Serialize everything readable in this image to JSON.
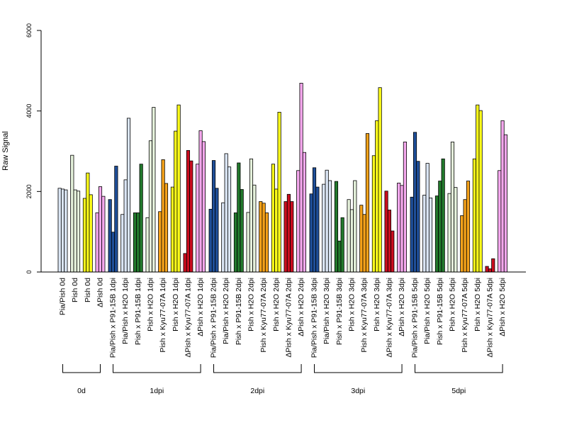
{
  "chart_data": {
    "type": "bar",
    "ylabel": "Raw Signal",
    "ylim": [
      0,
      6000
    ],
    "yticks": [
      0,
      2000,
      4000,
      6000
    ],
    "grid": false,
    "colors": {
      "Pia/Pish": "#dbe6f5",
      "Pish": "#e6f2dc",
      "ΔPish": "#f5a8ee",
      "Pia/Pish x P91-15B": "#1f4f99",
      "Pia/Pish x H2O": "#dbe6f5",
      "Pish x P91-15B": "#237a2d",
      "Pish x H2O": "#e6f2dc",
      "Pish x Kyu77-07A": "#f5a21a",
      "ΔPish x Kyu77-07A": "#cc0d1f",
      "ΔPish x H2O": "#f5a8ee",
      "Pish 0d": "#ffff1a"
    },
    "groups": [
      {
        "label": "0d",
        "categories": [
          {
            "label": "Pia/Pish 0d",
            "color": "#dbe6f5",
            "values": [
              2080,
              2060,
              2040
            ]
          },
          {
            "label": "Pish 0d",
            "color": "#e6f2dc",
            "values": [
              2900,
              2040,
              2010
            ]
          },
          {
            "label": "Pish 0d",
            "color": "#ffff1a",
            "values": [
              1830,
              2460,
              1920
            ]
          },
          {
            "label": "ΔPish 0d",
            "color": "#f5a8ee",
            "values": [
              1470,
              2120,
              1880
            ]
          }
        ]
      },
      {
        "label": "1dpi",
        "categories": [
          {
            "label": "Pia/Pish x P91-15B 1dpi",
            "color": "#1f4f99",
            "values": [
              1800,
              990,
              2630
            ]
          },
          {
            "label": "Pia/Pish x H2O 1dpi",
            "color": "#dbe6f5",
            "values": [
              1430,
              2290,
              3820
            ]
          },
          {
            "label": "Pish x P91-15B 1dpi",
            "color": "#237a2d",
            "values": [
              1470,
              1470,
              2680
            ]
          },
          {
            "label": "Pish x H2O 1dpi",
            "color": "#e6f2dc",
            "values": [
              1350,
              3260,
              4090
            ]
          },
          {
            "label": "Pish x Kyu77-07A 1dpi",
            "color": "#f5a21a",
            "values": [
              1500,
              2790,
              2200
            ]
          },
          {
            "label": "Pish x H2O 1dpi",
            "color": "#ffff1a",
            "values": [
              2110,
              3500,
              4150
            ]
          },
          {
            "label": "ΔPish x Kyu77-07A 1dpi",
            "color": "#cc0d1f",
            "values": [
              460,
              3020,
              2760
            ]
          },
          {
            "label": "ΔPish x H2O 1dpi",
            "color": "#f5a8ee",
            "values": [
              2680,
              3510,
              3240
            ]
          }
        ]
      },
      {
        "label": "2dpi",
        "categories": [
          {
            "label": "Pia/Pish x P91-15B 2dpi",
            "color": "#1f4f99",
            "values": [
              1560,
              2770,
              2080
            ]
          },
          {
            "label": "Pia/Pish x H2O 2dpi",
            "color": "#dbe6f5",
            "values": [
              1720,
              2940,
              2610
            ]
          },
          {
            "label": "Pish x P91-15B 2dpi",
            "color": "#237a2d",
            "values": [
              1470,
              2710,
              2050
            ]
          },
          {
            "label": "Pish x H2O 2dpi",
            "color": "#e6f2dc",
            "values": [
              1480,
              2810,
              2160
            ]
          },
          {
            "label": "Pish x Kyu77-07A 2dpi",
            "color": "#f5a21a",
            "values": [
              1750,
              1710,
              1470
            ]
          },
          {
            "label": "Pish x H2O 2dpi",
            "color": "#ffff1a",
            "values": [
              2680,
              2060,
              3970
            ]
          },
          {
            "label": "ΔPish x Kyu77-07A 2dpi",
            "color": "#cc0d1f",
            "values": [
              1750,
              1930,
              1750
            ]
          },
          {
            "label": "ΔPish x H2O 2dpi",
            "color": "#f5a8ee",
            "values": [
              2520,
              4690,
              2970
            ]
          }
        ]
      },
      {
        "label": "3dpi",
        "categories": [
          {
            "label": "Pia/Pish x P91-15B 3dpi",
            "color": "#1f4f99",
            "values": [
              1940,
              2590,
              2110
            ]
          },
          {
            "label": "Pia/Pish x H2O 3dpi",
            "color": "#dbe6f5",
            "values": [
              2180,
              2530,
              2270
            ]
          },
          {
            "label": "Pish x P91-15B 3dpi",
            "color": "#237a2d",
            "values": [
              2250,
              770,
              1350
            ]
          },
          {
            "label": "Pish x H2O 3dpi",
            "color": "#e6f2dc",
            "values": [
              1800,
              1550,
              2270
            ]
          },
          {
            "label": "Pish x Kyu77-07A 3dpi",
            "color": "#f5a21a",
            "values": [
              1660,
              1430,
              3440
            ]
          },
          {
            "label": "Pish x H2O 3dpi",
            "color": "#ffff1a",
            "values": [
              2890,
              3760,
              4580
            ]
          },
          {
            "label": "ΔPish x Kyu77-07A 3dpi",
            "color": "#cc0d1f",
            "values": [
              2010,
              1540,
              1020
            ]
          },
          {
            "label": "ΔPish x H2O 3dpi",
            "color": "#f5a8ee",
            "values": [
              2210,
              2150,
              3230
            ]
          }
        ]
      },
      {
        "label": "5dpi",
        "categories": [
          {
            "label": "Pia/Pish x P91-15B 5dpi",
            "color": "#1f4f99",
            "values": [
              1860,
              3470,
              2750
            ]
          },
          {
            "label": "Pia/Pish x H2O 5dpi",
            "color": "#dbe6f5",
            "values": [
              1910,
              2700,
              1840
            ]
          },
          {
            "label": "Pish x P91-15B 5dpi",
            "color": "#237a2d",
            "values": [
              1890,
              2260,
              2810
            ]
          },
          {
            "label": "Pish x H2O 5dpi",
            "color": "#e6f2dc",
            "values": [
              1950,
              3230,
              2100
            ]
          },
          {
            "label": "Pish x Kyu77-07A 5dpi",
            "color": "#f5a21a",
            "values": [
              1400,
              1800,
              2260
            ]
          },
          {
            "label": "Pish x H2O 5dpi",
            "color": "#ffff1a",
            "values": [
              2810,
              4150,
              4010
            ]
          },
          {
            "label": "ΔPish x Kyu77-07A 5dpi",
            "color": "#cc0d1f",
            "values": [
              140,
              80,
              330
            ]
          },
          {
            "label": "ΔPish x H2O 5dpi",
            "color": "#f5a8ee",
            "values": [
              2520,
              3760,
              3410
            ]
          }
        ]
      }
    ]
  }
}
